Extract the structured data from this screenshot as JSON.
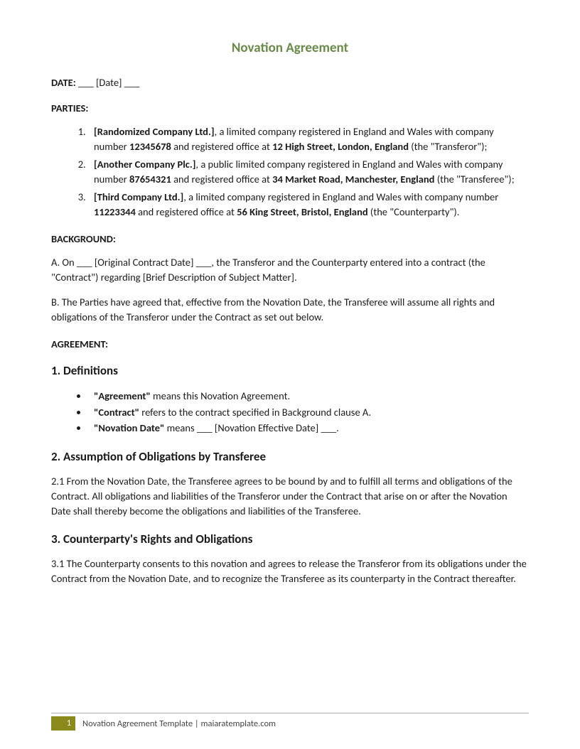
{
  "title": "Novation Agreement",
  "colors": {
    "title": "#6a8a4a",
    "footer_box": "#8a8a1a",
    "text": "#1a1a1a"
  },
  "date": {
    "label": "DATE:",
    "value": "___ [Date] ___"
  },
  "parties_label": "PARTIES:",
  "parties": [
    {
      "name": "[Randomized Company Ltd.]",
      "mid1": ", a limited company registered in England and Wales with company number ",
      "number": "12345678",
      "mid2": " and registered office at ",
      "address": "12 High Street, London, England",
      "role": " (the \"Transferor\");"
    },
    {
      "name": "[Another Company Plc.]",
      "mid1": ", a public limited company registered in England and Wales with company number ",
      "number": "87654321",
      "mid2": " and registered office at ",
      "address": "34 Market Road, Manchester, England",
      "role": " (the \"Transferee\");"
    },
    {
      "name": "[Third Company Ltd.]",
      "mid1": ", a limited company registered in England and Wales with company number ",
      "number": "11223344",
      "mid2": " and registered office at ",
      "address": "56 King Street, Bristol, England",
      "role": " (the \"Counterparty\")."
    }
  ],
  "background_label": "BACKGROUND:",
  "background_a": "A. On ___ [Original Contract Date] ___, the Transferor and the Counterparty entered into a contract (the \"Contract\") regarding [Brief Description of Subject Matter].",
  "background_b": "B. The Parties have agreed that, effective from the Novation Date, the Transferee will assume all rights and obligations of the Transferor under the Contract as set out below.",
  "agreement_label": "AGREEMENT:",
  "section1": {
    "heading": "1. Definitions",
    "defs": [
      {
        "term": "\"Agreement\"",
        "body": " means this Novation Agreement."
      },
      {
        "term": "\"Contract\"",
        "body": " refers to the contract specified in Background clause A."
      },
      {
        "term": "\"Novation Date\"",
        "body": " means ___ [Novation Effective Date] ___."
      }
    ]
  },
  "section2": {
    "heading": "2. Assumption of Obligations by Transferee",
    "body": "2.1 From the Novation Date, the Transferee agrees to be bound by and to fulfill all terms and obligations of the Contract. All obligations and liabilities of the Transferor under the Contract that arise on or after the Novation Date shall thereby become the obligations and liabilities of the Transferee."
  },
  "section3": {
    "heading": "3. Counterparty's Rights and Obligations",
    "body": "3.1 The Counterparty consents to this novation and agrees to release the Transferor from its obligations under the Contract from the Novation Date, and to recognize the Transferee as its counterparty in the Contract thereafter."
  },
  "footer": {
    "page": "1",
    "text": "Novation Agreement Template | maiaratemplate.com"
  }
}
